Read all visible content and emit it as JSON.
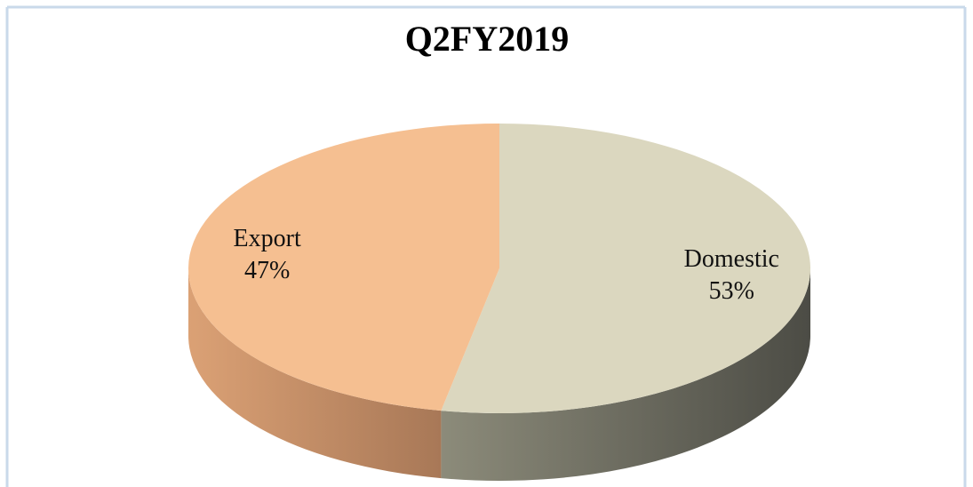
{
  "chart_data": {
    "type": "pie",
    "title": "Q2FY2019",
    "categories": [
      "Domestic",
      "Export"
    ],
    "values": [
      53,
      47
    ],
    "value_labels": [
      "53%",
      "47%"
    ],
    "colors": [
      "#dbd7bf",
      "#f5bf91"
    ],
    "side_colors": [
      [
        "#8c8b7a",
        "#4c4c45"
      ],
      [
        "#dba175",
        "#a87857"
      ]
    ]
  }
}
